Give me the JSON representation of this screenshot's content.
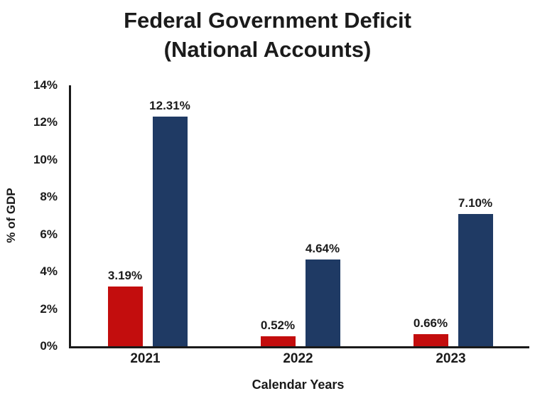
{
  "title": {
    "line1": "Federal Government Deficit",
    "line2": "(National Accounts)"
  },
  "chart_data": {
    "type": "bar",
    "title": "Federal Government Deficit (National Accounts)",
    "categories": [
      "2021",
      "2022",
      "2023"
    ],
    "series": [
      {
        "name": "red",
        "color": "#c30d0d",
        "values": [
          3.19,
          0.52,
          0.66
        ]
      },
      {
        "name": "navy",
        "color": "#1f3a64",
        "values": [
          12.31,
          4.64,
          7.1
        ]
      }
    ],
    "value_labels": [
      [
        "3.19%",
        "12.31%"
      ],
      [
        "0.52%",
        "4.64%"
      ],
      [
        "0.66%",
        "7.10%"
      ]
    ],
    "xlabel": "Calendar Years",
    "ylabel": "% of GDP",
    "ylim": [
      0,
      14
    ],
    "ytick_step": 2,
    "yticks": [
      "0%",
      "2%",
      "4%",
      "6%",
      "8%",
      "10%",
      "12%",
      "14%"
    ],
    "grid": false,
    "legend": false,
    "axis_color": "#1a1a1a",
    "background": "#ffffff"
  }
}
